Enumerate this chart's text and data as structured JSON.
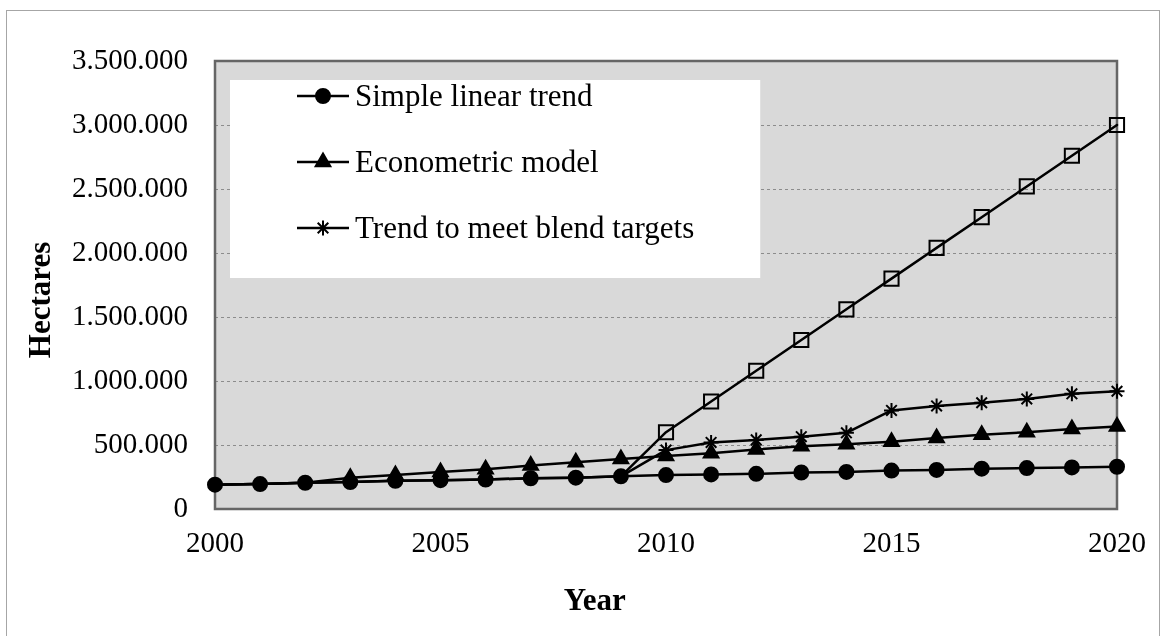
{
  "chart_data": {
    "type": "line",
    "xlabel": "Year",
    "ylabel": "Hectares",
    "x": [
      2000,
      2001,
      2002,
      2003,
      2004,
      2005,
      2006,
      2007,
      2008,
      2009,
      2010,
      2011,
      2012,
      2013,
      2014,
      2015,
      2016,
      2017,
      2018,
      2019,
      2020
    ],
    "xlim": [
      2000,
      2020
    ],
    "xticks": [
      2000,
      2005,
      2010,
      2015,
      2020
    ],
    "ylim": [
      0,
      3500000
    ],
    "yticks": [
      0,
      {
        "value": 500000,
        "label": "500.000"
      },
      {
        "value": 1000000,
        "label": "1.000.000"
      },
      {
        "value": 1500000,
        "label": "1.500.000"
      },
      {
        "value": 2000000,
        "label": "2.000.000"
      },
      {
        "value": 2500000,
        "label": "2.500.000"
      },
      {
        "value": 3000000,
        "label": "3.000.000"
      },
      {
        "value": 3500000,
        "label": "3.500.000"
      }
    ],
    "grid": "y",
    "legend": "top left",
    "line_style": "solid",
    "series": [
      {
        "name": "Simple linear trend",
        "color": "#000000",
        "marker": "circle",
        "values": [
          190000,
          195000,
          205000,
          210000,
          220000,
          225000,
          230000,
          240000,
          245000,
          255000,
          265000,
          270000,
          275000,
          285000,
          290000,
          300000,
          305000,
          315000,
          320000,
          325000,
          330000
        ]
      },
      {
        "name": "Econometric model",
        "color": "#000000",
        "marker": "triangle",
        "values": [
          190000,
          195000,
          205000,
          245000,
          265000,
          290000,
          310000,
          340000,
          365000,
          390000,
          415000,
          435000,
          465000,
          490000,
          505000,
          525000,
          555000,
          580000,
          600000,
          625000,
          645000
        ]
      },
      {
        "name": "Trend to meet blend targets",
        "color": "#000000",
        "marker": "cross",
        "values": [
          null,
          null,
          null,
          null,
          null,
          null,
          null,
          null,
          null,
          255000,
          460000,
          520000,
          540000,
          565000,
          595000,
          770000,
          805000,
          830000,
          860000,
          900000,
          920000
        ]
      },
      {
        "color": "#000000",
        "marker": "square",
        "values": [
          190000,
          195000,
          205000,
          210000,
          220000,
          225000,
          230000,
          240000,
          245000,
          255000,
          600000,
          840000,
          1080000,
          1320000,
          1560000,
          1800000,
          2040000,
          2280000,
          2520000,
          2760000,
          3000000
        ]
      }
    ]
  }
}
